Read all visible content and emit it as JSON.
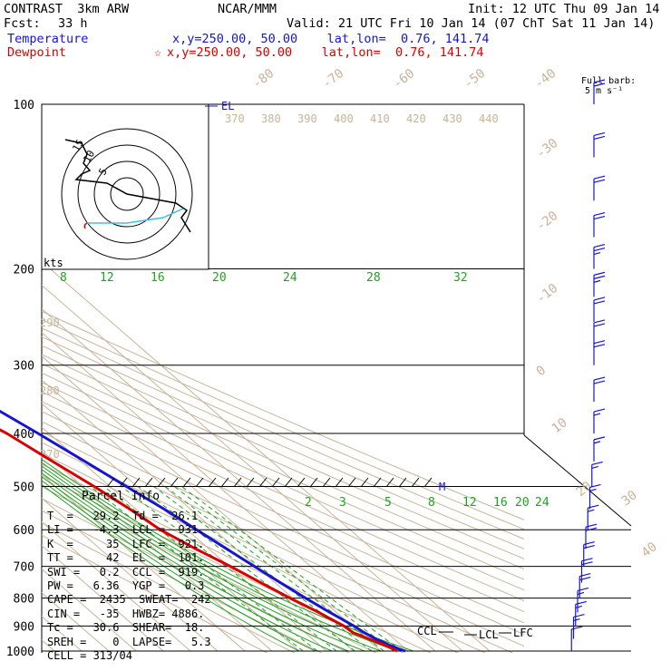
{
  "header": {
    "model": "CONTRAST  3km ARW",
    "org": "NCAR/MMM",
    "init": "Init: 12 UTC Thu 09 Jan 14",
    "fcst_label": "Fcst:",
    "fcst_value": "33 h",
    "valid": "Valid: 21 UTC Fri 10 Jan 14 (07 ChT Sat 11 Jan 14)",
    "temperature_label": "Temperature",
    "temperature_loc": "x,y=250.00, 50.00    lat,lon=  0.76, 141.74",
    "dewpoint_label": "Dewpoint",
    "dewpoint_loc": "x,y=250.00, 50.00    lat,lon=  0.76, 141.74",
    "barb_key_line1": "Full barb:",
    "barb_key_line2": "5 m s⁻¹"
  },
  "chart_data": {
    "type": "line",
    "pressure_labels": [
      "100",
      "200",
      "300",
      "400",
      "500",
      "600",
      "700",
      "800",
      "900",
      "1000"
    ],
    "isotherm_labels": [
      "-80",
      "-70",
      "-60",
      "-50",
      "-40",
      "-30",
      "-20",
      "-10",
      "0",
      "10",
      "20",
      "30",
      "40"
    ],
    "theta_labels": [
      "370",
      "380",
      "390",
      "400",
      "410",
      "420",
      "430",
      "440"
    ],
    "theta_left_labels": [
      "290",
      "280",
      "270"
    ],
    "mixing_ratio_upper": [
      "8",
      "12",
      "16",
      "20",
      "24",
      "28",
      "32"
    ],
    "mixing_ratio_lower": [
      "2",
      "3",
      "5",
      "8",
      "12",
      "16",
      "20",
      "24"
    ],
    "hodo_unit": "kts",
    "hodo_rings": [
      "5",
      "10",
      "15"
    ],
    "annotations": {
      "el": "EL",
      "ccl": "CCL",
      "lcl": "LCL",
      "lfc": "LFC",
      "m": "M"
    },
    "series": [
      {
        "name": "Temperature",
        "color": "#1515d0",
        "p": [
          1000,
          990,
          975,
          950,
          925,
          900,
          875,
          850,
          800,
          750,
          700,
          650,
          600,
          550,
          500,
          450,
          400,
          350,
          300,
          250,
          200,
          150,
          100
        ],
        "t": [
          29.0,
          27.5,
          25.6,
          23.3,
          21.7,
          20.7,
          19.2,
          17.6,
          14.7,
          12.0,
          9.3,
          6.5,
          3.5,
          0.3,
          -4.0,
          -8.6,
          -14.0,
          -20.6,
          -29.5,
          -40.0,
          -53.4,
          -67.5,
          -80.0
        ]
      },
      {
        "name": "Dewpoint",
        "color": "#d80000",
        "p": [
          1000,
          990,
          975,
          950,
          925,
          900,
          875,
          850,
          800,
          750,
          700,
          650,
          600,
          550,
          500,
          450,
          400,
          350,
          300,
          250,
          200,
          150,
          100
        ],
        "t": [
          26.0,
          25.3,
          24.0,
          20.8,
          17.6,
          17.0,
          15.2,
          13.5,
          9.0,
          4.8,
          0.5,
          -4.9,
          -9.8,
          -12.3,
          -15.8,
          -20.5,
          -25.5,
          -34.5,
          -45.0,
          -60.0,
          -77.0,
          -80.0,
          -92.0
        ]
      }
    ],
    "wind_barbs": [
      {
        "p": 100,
        "kt": 20
      },
      {
        "p": 125,
        "kt": 20
      },
      {
        "p": 150,
        "kt": 20
      },
      {
        "p": 175,
        "kt": 20
      },
      {
        "p": 200,
        "kt": 25
      },
      {
        "p": 225,
        "kt": 25
      },
      {
        "p": 250,
        "kt": 20
      },
      {
        "p": 275,
        "kt": 20
      },
      {
        "p": 300,
        "kt": 20
      },
      {
        "p": 350,
        "kt": 20
      },
      {
        "p": 400,
        "kt": 15
      },
      {
        "p": 450,
        "kt": 15
      },
      {
        "p": 500,
        "kt": 15
      },
      {
        "p": 550,
        "kt": 15
      },
      {
        "p": 600,
        "kt": 15
      },
      {
        "p": 650,
        "kt": 20
      },
      {
        "p": 700,
        "kt": 20
      },
      {
        "p": 750,
        "kt": 20
      },
      {
        "p": 800,
        "kt": 20
      },
      {
        "p": 850,
        "kt": 15
      },
      {
        "p": 900,
        "kt": 15
      },
      {
        "p": 950,
        "kt": 15
      },
      {
        "p": 1000,
        "kt": 10
      }
    ]
  },
  "parcel_info": {
    "title": "Parcel Info",
    "rows": [
      "T  =   29.2  Td =  26.1",
      "LI =   -4.3  LCL =  931.",
      "K  =     35  LFC =  921.",
      "TT =     42  EL  =  101.",
      "SWI =   0.2  CCL =  919.",
      "PW =   6.36  YGP =   0.3",
      "CAPE =  2435  SWEAT=  242",
      "CIN =   -35  HWBZ= 4886.",
      "Tc =   30.6  SHEAR=  18.",
      "SREH =    0  LAPSE=   5.3",
      "CELL = 313/04"
    ]
  }
}
